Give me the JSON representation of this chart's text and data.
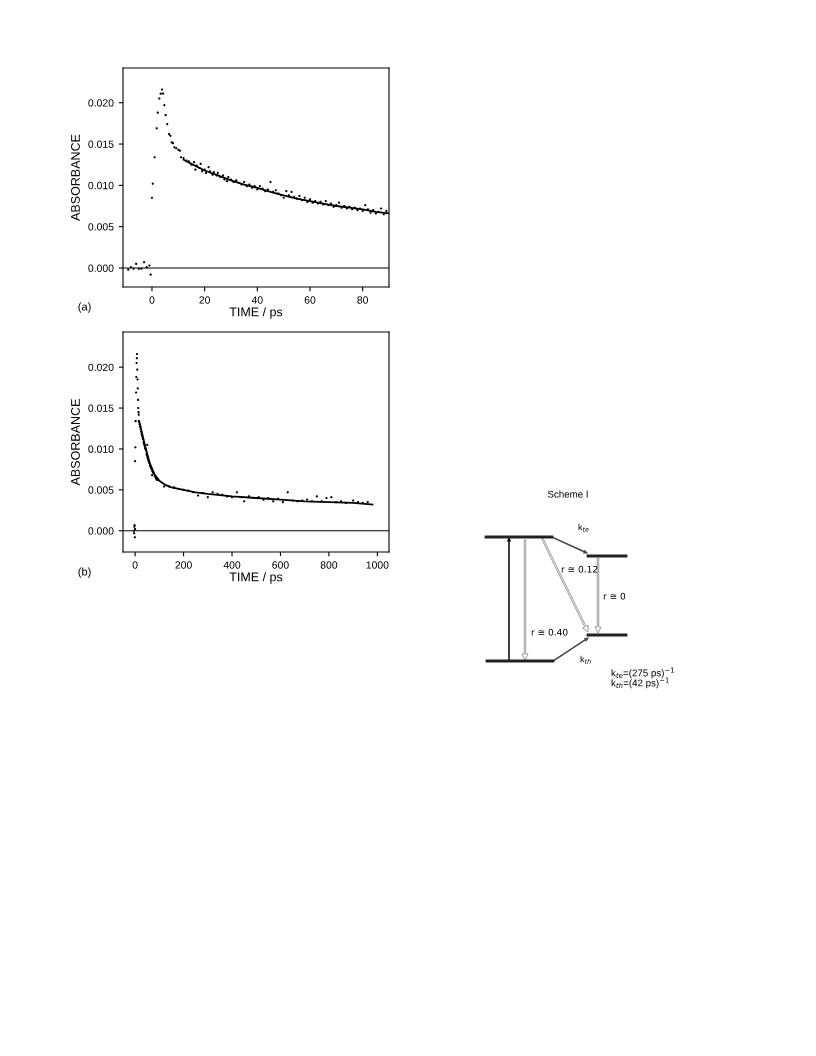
{
  "chart_data": [
    {
      "type": "scatter",
      "xlabel": "TIME / ps",
      "ylabel": "ABSORBANCE",
      "annotations": [
        "(a)"
      ],
      "xlim": [
        -11,
        90
      ],
      "xticks": [
        0,
        20,
        40,
        60,
        80
      ],
      "ylim": [
        -0.0023,
        0.0242
      ],
      "yticks": [
        {
          "value": 0,
          "label": "0.000"
        },
        {
          "value": 0.005,
          "label": "0.005"
        },
        {
          "value": 0.01,
          "label": "0.010"
        },
        {
          "value": 0.015,
          "label": "0.015"
        },
        {
          "value": 0.02,
          "label": "0.020"
        }
      ],
      "ref_lines": [
        {
          "axis": "y",
          "value": 0,
          "color": "#000000"
        }
      ],
      "grid": false,
      "series": [
        {
          "type": "scatter",
          "marker": "circle",
          "color": "#000000",
          "x": [
            -9,
            -8,
            -7,
            -6,
            -5,
            -4,
            -3,
            -2,
            -1,
            -0.5,
            0,
            0.3,
            1,
            1.8,
            2.2,
            2.8,
            3.3,
            3.8,
            4.2,
            4.7,
            5.2,
            5.8,
            6.5,
            7,
            7.5,
            8,
            8.5,
            9.2,
            10,
            10.6,
            11,
            12,
            13,
            14,
            15,
            16,
            16.5,
            17,
            18,
            18.5,
            19,
            20,
            20.5,
            21.5,
            22,
            23,
            23.5,
            24.5,
            25,
            26,
            27,
            27.5,
            28.5,
            29,
            30,
            31,
            32,
            33,
            34,
            35,
            36,
            37,
            38,
            39,
            40,
            41,
            42,
            43,
            44,
            45,
            46,
            47,
            48,
            49,
            50,
            51,
            52,
            53,
            54,
            55,
            56,
            57,
            58,
            59,
            60,
            61,
            62,
            63,
            64,
            65,
            66,
            67,
            68,
            69,
            70,
            71,
            72,
            73,
            74,
            75,
            76,
            77,
            78,
            79,
            80,
            81,
            82,
            83,
            84,
            85,
            86,
            87,
            88,
            89
          ],
          "values": [
            -0.0002,
            0.0001,
            -0.0001,
            0.0005,
            -0.0001,
            -0.0001,
            0.0007,
            0.0001,
            0.0003,
            -0.0008,
            0.0085,
            0.0102,
            0.0134,
            0.0169,
            0.0188,
            0.0205,
            0.0211,
            0.0216,
            0.0211,
            0.0197,
            0.0185,
            0.0174,
            0.0162,
            0.016,
            0.0152,
            0.0151,
            0.0146,
            0.0145,
            0.0143,
            0.0142,
            0.0134,
            0.0133,
            0.013,
            0.0129,
            0.0125,
            0.0128,
            0.0119,
            0.0124,
            0.0121,
            0.0126,
            0.0117,
            0.0119,
            0.0115,
            0.0122,
            0.0117,
            0.0113,
            0.0116,
            0.0112,
            0.0115,
            0.011,
            0.0112,
            0.0107,
            0.0105,
            0.011,
            0.0107,
            0.0104,
            0.0106,
            0.0103,
            0.0101,
            0.0104,
            0.0099,
            0.0101,
            0.0097,
            0.0099,
            0.0095,
            0.0099,
            0.0096,
            0.0093,
            0.0095,
            0.0104,
            0.0092,
            0.0094,
            0.009,
            0.0088,
            0.0085,
            0.0093,
            0.0088,
            0.0092,
            0.0086,
            0.0084,
            0.0087,
            0.0082,
            0.0085,
            0.008,
            0.0083,
            0.0079,
            0.0081,
            0.0078,
            0.008,
            0.0077,
            0.0081,
            0.0076,
            0.0078,
            0.0074,
            0.0076,
            0.0079,
            0.0073,
            0.0075,
            0.0072,
            0.0074,
            0.0071,
            0.0073,
            0.007,
            0.0072,
            0.0069,
            0.0076,
            0.0071,
            0.0067,
            0.007,
            0.0066,
            0.0068,
            0.0072,
            0.0065,
            0.0069
          ]
        },
        {
          "type": "line",
          "color": "#000000",
          "x": [
            12,
            15,
            20,
            25,
            30,
            35,
            40,
            45,
            50,
            55,
            60,
            65,
            70,
            75,
            80,
            85,
            90
          ],
          "values": [
            0.0131,
            0.0126,
            0.0118,
            0.0112,
            0.0106,
            0.0101,
            0.0097,
            0.0092,
            0.0088,
            0.0084,
            0.0081,
            0.0078,
            0.0075,
            0.0073,
            0.0071,
            0.0068,
            0.0066
          ]
        }
      ]
    },
    {
      "type": "scatter",
      "xlabel": "TIME / ps",
      "ylabel": "ABSORBANCE",
      "annotations": [
        "(b)"
      ],
      "xlim": [
        -50,
        1048
      ],
      "xticks": [
        0,
        200,
        400,
        600,
        800,
        1000
      ],
      "ylim": [
        -0.0026,
        0.0243
      ],
      "yticks": [
        {
          "value": 0,
          "label": "0.000"
        },
        {
          "value": 0.005,
          "label": "0.005"
        },
        {
          "value": 0.01,
          "label": "0.010"
        },
        {
          "value": 0.015,
          "label": "0.015"
        },
        {
          "value": 0.02,
          "label": "0.020"
        }
      ],
      "ref_lines": [
        {
          "axis": "y",
          "value": 0,
          "color": "#000000"
        }
      ],
      "grid": false,
      "series": [
        {
          "type": "scatter",
          "marker": "circle",
          "color": "#000000",
          "x": [
            -5,
            -4,
            -3,
            -2,
            -1,
            0,
            0,
            1,
            2,
            4,
            5,
            6,
            7,
            8,
            9,
            10,
            11,
            12,
            13,
            14,
            15,
            16,
            17,
            19,
            21,
            23,
            25,
            27,
            29,
            31,
            33,
            35,
            37,
            39,
            41,
            43,
            45,
            47,
            49,
            50,
            51,
            53,
            55,
            57,
            59,
            61,
            63,
            65,
            67,
            69,
            70,
            71,
            73,
            75,
            77,
            81,
            83,
            85,
            87,
            89,
            91,
            95,
            120,
            140,
            160,
            180,
            200,
            220,
            240,
            260,
            280,
            300,
            320,
            340,
            360,
            380,
            400,
            420,
            440,
            450,
            470,
            490,
            510,
            530,
            550,
            570,
            590,
            610,
            630,
            650,
            670,
            690,
            710,
            730,
            750,
            770,
            790,
            810,
            830,
            850,
            870,
            900,
            920,
            940,
            960
          ],
          "values": [
            0.0,
            -0.0003,
            0.0005,
            0.0007,
            -0.0008,
            0.0002,
            0.0085,
            0.0102,
            0.0134,
            0.0169,
            0.0188,
            0.0205,
            0.0211,
            0.0216,
            0.0197,
            0.0185,
            0.0174,
            0.016,
            0.015,
            0.0145,
            0.0142,
            0.0134,
            0.0133,
            0.013,
            0.0127,
            0.0124,
            0.0121,
            0.0118,
            0.0116,
            0.0113,
            0.0112,
            0.0108,
            0.0106,
            0.0104,
            0.0101,
            0.01,
            0.0098,
            0.0094,
            0.0092,
            0.0105,
            0.009,
            0.0088,
            0.0086,
            0.0084,
            0.0083,
            0.008,
            0.0079,
            0.0077,
            0.0076,
            0.0075,
            0.0068,
            0.0073,
            0.0072,
            0.0071,
            0.007,
            0.0067,
            0.0066,
            0.0065,
            0.0064,
            0.0063,
            0.0062,
            0.0063,
            0.0054,
            0.0054,
            0.0053,
            0.0051,
            0.005,
            0.0049,
            0.0047,
            0.0043,
            0.0046,
            0.0041,
            0.0047,
            0.0045,
            0.0044,
            0.0042,
            0.0041,
            0.0047,
            0.0041,
            0.0036,
            0.0042,
            0.004,
            0.0041,
            0.0038,
            0.004,
            0.0036,
            0.0039,
            0.0035,
            0.0047,
            0.0037,
            0.0036,
            0.0037,
            0.0038,
            0.0036,
            0.0042,
            0.0036,
            0.004,
            0.0041,
            0.0035,
            0.0036,
            0.0034,
            0.0037,
            0.0035,
            0.0034,
            0.0035
          ]
        },
        {
          "type": "line",
          "color": "#000000",
          "x": [
            15,
            20,
            40,
            60,
            80,
            100,
            125,
            150,
            200,
            250,
            300,
            400,
            500,
            600,
            700,
            800,
            900,
            980
          ],
          "values": [
            0.0134,
            0.013,
            0.0105,
            0.0083,
            0.0069,
            0.0061,
            0.0056,
            0.0053,
            0.005,
            0.0047,
            0.0045,
            0.0042,
            0.004,
            0.0038,
            0.0036,
            0.0035,
            0.0034,
            0.0032
          ]
        }
      ]
    },
    {
      "type": "other",
      "title": "Scheme I",
      "annotations": [
        "k$_{te}$",
        "r ≅ 0.12",
        "r ≅ 0",
        "r ≅ 0.40",
        "k$_{th}$",
        "k$_{te}$=(275 ps)$^{−1}$",
        "k$_{th}$=(42 ps)$^{−1}$"
      ]
    }
  ]
}
